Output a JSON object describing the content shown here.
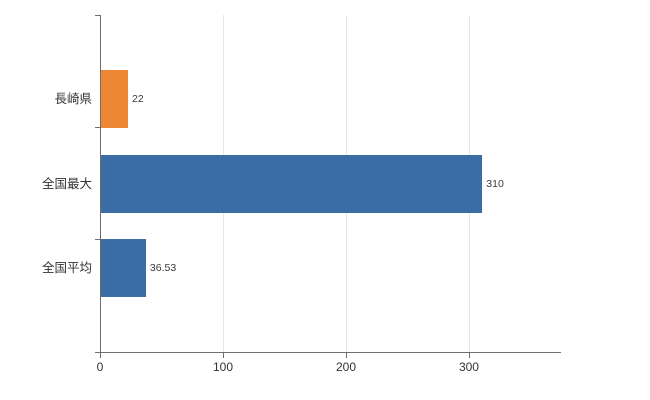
{
  "chart_data": {
    "type": "bar",
    "orientation": "horizontal",
    "title": "",
    "xlabel": "",
    "ylabel": "",
    "categories": [
      "長崎県",
      "全国最大",
      "全国平均"
    ],
    "values": [
      22,
      310,
      36.53
    ],
    "value_labels": [
      "22",
      "310",
      "36.53"
    ],
    "bar_colors": [
      "#ed8733",
      "#3b6ea5",
      "#3b6ea5"
    ],
    "x_ticks": [
      0,
      100,
      200,
      300
    ],
    "x_tick_labels": [
      "0",
      "100",
      "200",
      "300"
    ],
    "xlim": [
      0,
      374
    ],
    "grid": "vertical-gridlines-on",
    "legend": "none",
    "background": "#ffffff",
    "axis_color": "#6e6e6e",
    "gridline_color": "#e6e6e6"
  }
}
